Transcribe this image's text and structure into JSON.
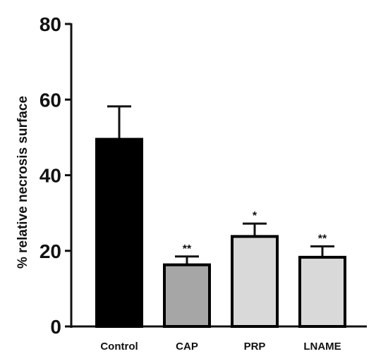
{
  "chart_data": {
    "type": "bar",
    "title": "",
    "xlabel": "",
    "ylabel": "% relative necrosis surface",
    "ylim": [
      0,
      80
    ],
    "yticks": [
      0,
      20,
      40,
      60,
      80
    ],
    "grid": false,
    "categories": [
      "Control",
      "CAP",
      "PRP",
      "LNAME"
    ],
    "values": [
      49.5,
      16.3,
      23.8,
      18.3
    ],
    "errors": [
      8.7,
      2.2,
      3.4,
      2.9
    ],
    "significance": [
      "",
      "**",
      "*",
      "**"
    ],
    "colors": [
      "#000000",
      "#a6a6a6",
      "#d9d9d9",
      "#d9d9d9"
    ],
    "edge_color": "#000000"
  }
}
